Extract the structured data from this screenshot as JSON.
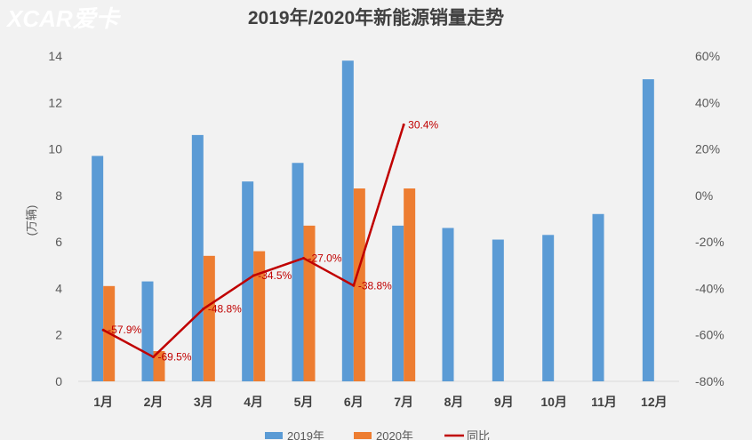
{
  "watermark": {
    "logo": "XCAR爱卡"
  },
  "chart_data": {
    "type": "bar",
    "title": "2019年/2020年新能源销量走势",
    "ylabel": "(万辆)",
    "categories": [
      "1月",
      "2月",
      "3月",
      "4月",
      "5月",
      "6月",
      "7月",
      "8月",
      "9月",
      "10月",
      "11月",
      "12月"
    ],
    "ylim": [
      0,
      14
    ],
    "yticks": [
      0,
      2,
      4,
      6,
      8,
      10,
      12,
      14
    ],
    "y2lim": [
      -80,
      60
    ],
    "y2ticks": [
      "-80%",
      "-60%",
      "-40%",
      "-20%",
      "0%",
      "20%",
      "40%",
      "60%"
    ],
    "y2tick_values": [
      -80,
      -60,
      -40,
      -20,
      0,
      20,
      40,
      60
    ],
    "series": [
      {
        "name": "2019年",
        "type": "bar",
        "color": "#5b9bd5",
        "values": [
          9.7,
          4.3,
          10.6,
          8.6,
          9.4,
          13.8,
          6.7,
          6.6,
          6.1,
          6.3,
          7.2,
          13.0
        ]
      },
      {
        "name": "2020年",
        "type": "bar",
        "color": "#ed7d31",
        "values": [
          4.1,
          1.3,
          5.4,
          5.6,
          6.7,
          8.3,
          8.3,
          null,
          null,
          null,
          null,
          null
        ]
      },
      {
        "name": "同比",
        "type": "line",
        "axis": "right",
        "color": "#c00000",
        "values": [
          -57.9,
          -69.5,
          -48.8,
          -34.5,
          -27.0,
          -38.8,
          30.4,
          null,
          null,
          null,
          null,
          null
        ],
        "labels": [
          "-57.9%",
          "-69.5%",
          "-48.8%",
          "-34.5%",
          "-27.0%",
          "-38.8%",
          "30.4%",
          null,
          null,
          null,
          null,
          null
        ]
      }
    ],
    "grid": false,
    "legend": "bottom"
  }
}
